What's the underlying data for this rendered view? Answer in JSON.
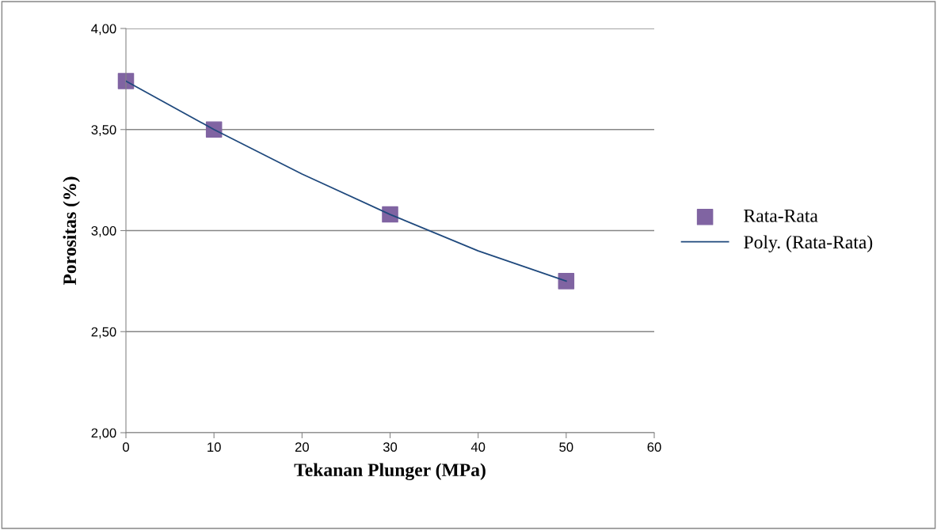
{
  "chart_data": {
    "type": "scatter",
    "xlabel": "Tekanan Plunger (MPa)",
    "ylabel": "Porositas (%)",
    "x": [
      0,
      10,
      30,
      50
    ],
    "series": [
      {
        "name": "Rata-Rata",
        "color": "#8064a2",
        "marker": "square",
        "values": [
          3.74,
          3.5,
          3.08,
          2.75
        ]
      },
      {
        "name": "Poly. (Rata-Rata)",
        "type": "line",
        "color": "#1f497d",
        "marker": "none",
        "line_style": "solid",
        "x": [
          0,
          10,
          20,
          30,
          40,
          50
        ],
        "values": [
          3.74,
          3.5,
          3.28,
          3.08,
          2.9,
          2.75
        ]
      }
    ],
    "xlim": [
      0,
      60
    ],
    "xticks": [
      0,
      10,
      20,
      30,
      40,
      50,
      60
    ],
    "ylim": [
      2,
      4
    ],
    "yticks": [
      {
        "value": 2,
        "label": "2,00"
      },
      {
        "value": 2.5,
        "label": "2,50"
      },
      {
        "value": 3,
        "label": "3,00"
      },
      {
        "value": 3.5,
        "label": "3,50"
      },
      {
        "value": 4,
        "label": "4,00"
      }
    ],
    "grid": "y",
    "legend": "right"
  }
}
